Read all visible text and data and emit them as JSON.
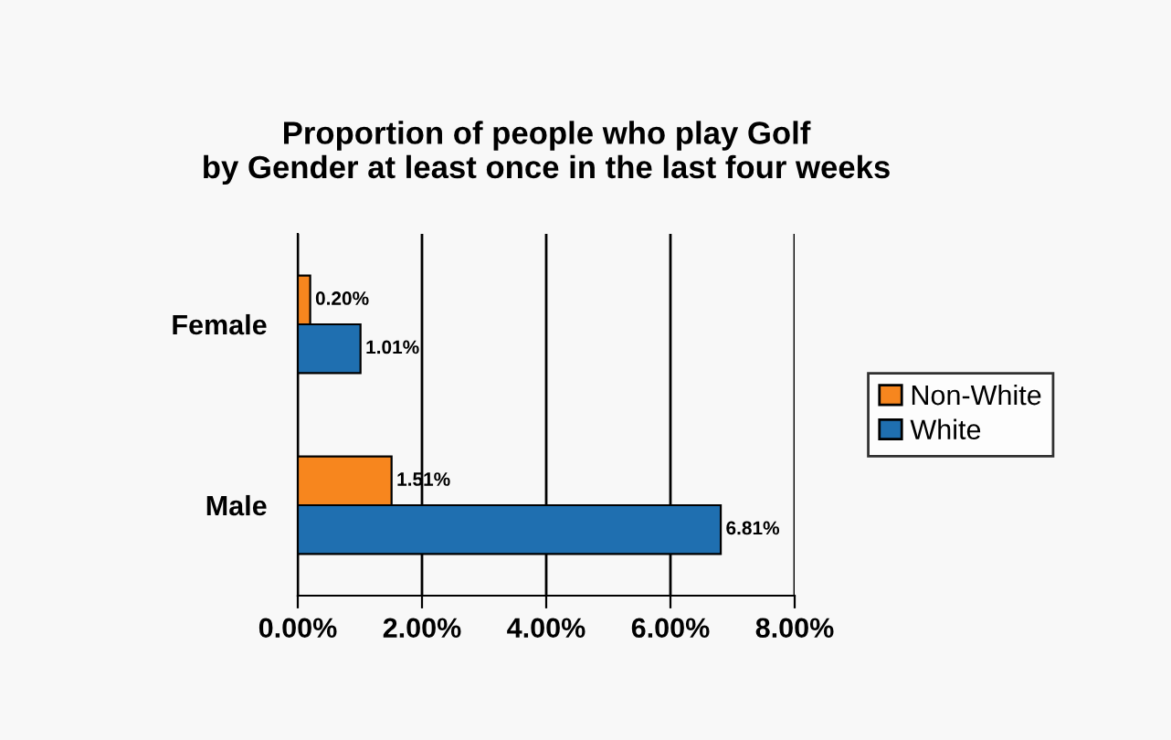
{
  "chart_data": {
    "type": "bar",
    "orientation": "horizontal",
    "title": "Proportion of people who play Golf\nby Gender at least once in the last four weeks",
    "categories": [
      "Female",
      "Male"
    ],
    "series": [
      {
        "name": "Non-White",
        "color": "#f7861e",
        "values": [
          0.2,
          1.51
        ],
        "value_labels": [
          "0.20%",
          "1.51%"
        ]
      },
      {
        "name": "White",
        "color": "#1f6fb0",
        "values": [
          1.01,
          6.81
        ],
        "value_labels": [
          "1.01%",
          "6.81%"
        ]
      }
    ],
    "xlim": [
      0,
      8
    ],
    "xticks": [
      {
        "value": 0,
        "label": "0.00%"
      },
      {
        "value": 2,
        "label": "2.00%"
      },
      {
        "value": 4,
        "label": "4.00%"
      },
      {
        "value": 6,
        "label": "6.00%"
      },
      {
        "value": 8,
        "label": "8.00%"
      }
    ],
    "grid": "x",
    "legend": "right"
  }
}
